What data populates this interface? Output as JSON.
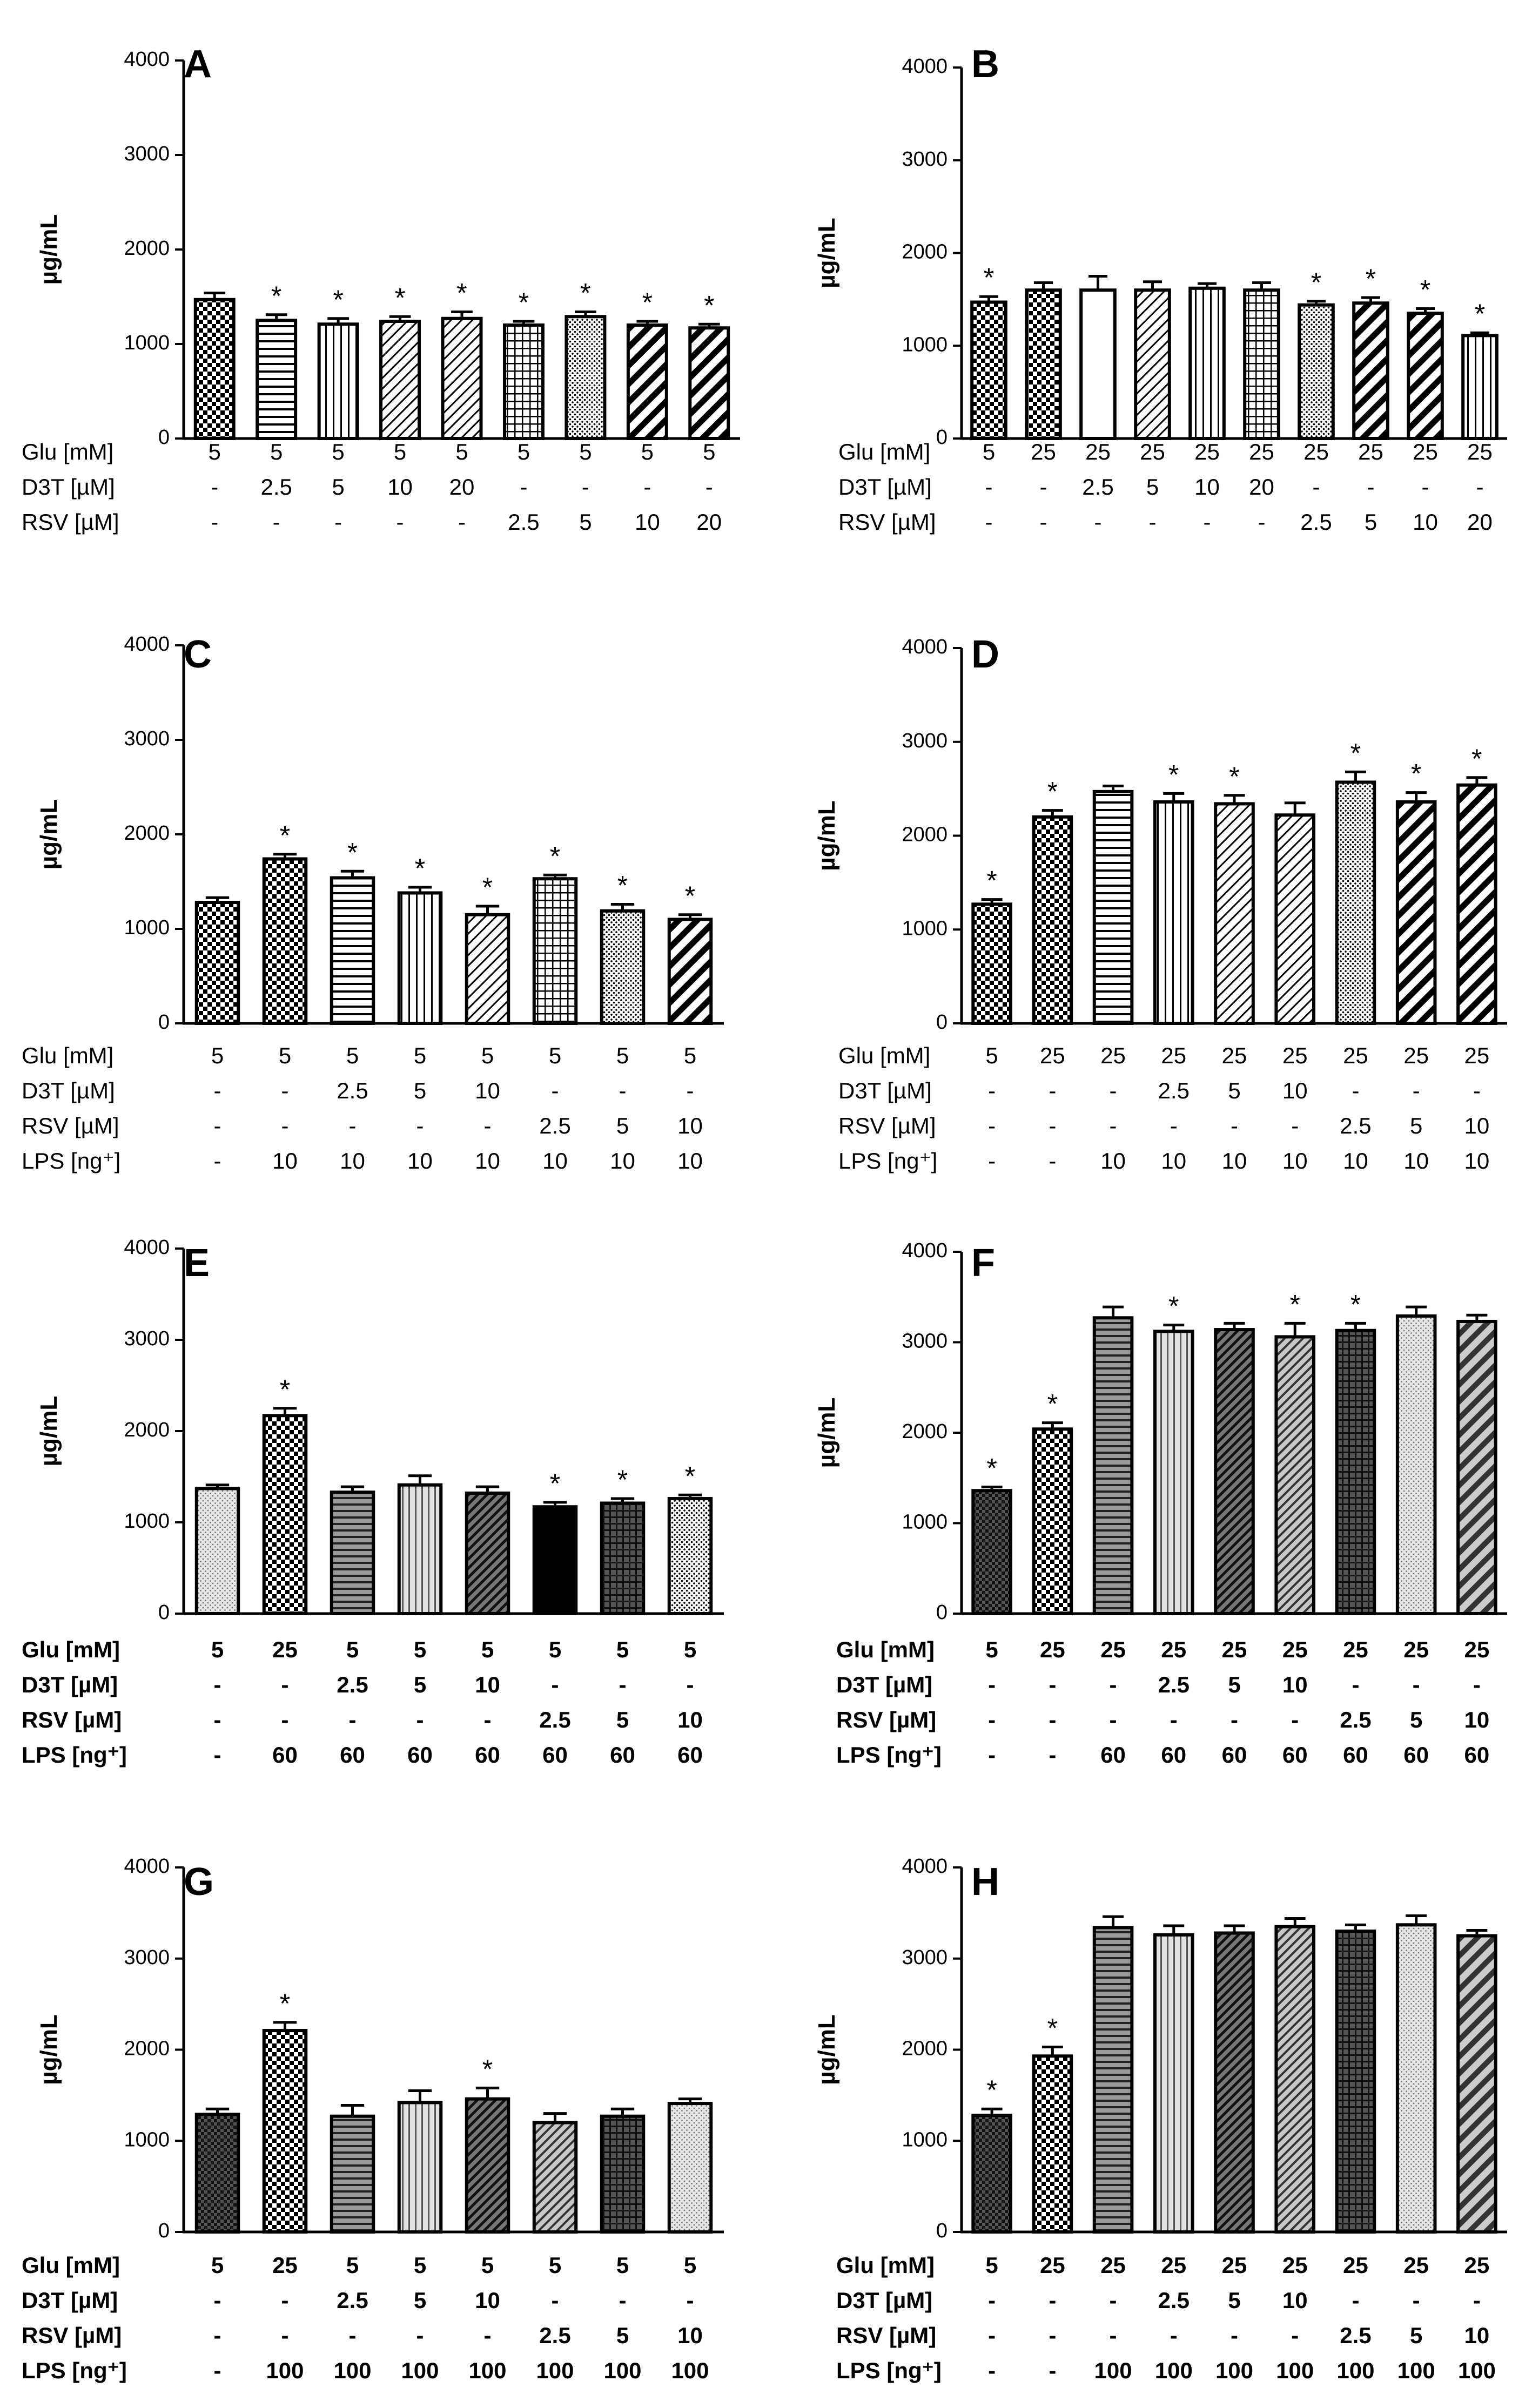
{
  "chart_data": [
    {
      "panel": "A",
      "type": "bar",
      "ylabel": "µg/mL",
      "ylim": [
        0,
        4000
      ],
      "yticks": [
        "0",
        "1000",
        "2000",
        "3000",
        "4000"
      ],
      "values": [
        1470,
        1250,
        1210,
        1240,
        1270,
        1200,
        1290,
        1200,
        1170
      ],
      "errors": [
        70,
        60,
        60,
        50,
        70,
        40,
        50,
        40,
        40
      ],
      "significance": [
        "",
        "*",
        "*",
        "*",
        "*",
        "*",
        "*",
        "*",
        "*"
      ],
      "patterns": [
        "check",
        "hlines",
        "vlines",
        "diag",
        "diag",
        "grid",
        "dots",
        "thickdiag",
        "thickdiag"
      ],
      "table": [
        {
          "label": "Glu [mM]",
          "cells": [
            "5",
            "5",
            "5",
            "5",
            "5",
            "5",
            "5",
            "5",
            "5"
          ]
        },
        {
          "label": "D3T [µM]",
          "cells": [
            "-",
            "2.5",
            "5",
            "10",
            "20",
            "-",
            "-",
            "-",
            "-"
          ]
        },
        {
          "label": "RSV [µM]",
          "cells": [
            "-",
            "-",
            "-",
            "-",
            "-",
            "2.5",
            "5",
            "10",
            "20"
          ]
        }
      ]
    },
    {
      "panel": "B",
      "type": "bar",
      "ylabel": "µg/mL",
      "ylim": [
        0,
        4000
      ],
      "yticks": [
        "0",
        "1000",
        "2000",
        "3000",
        "4000"
      ],
      "values": [
        1470,
        1600,
        1600,
        1600,
        1620,
        1600,
        1440,
        1460,
        1350,
        1110
      ],
      "errors": [
        60,
        80,
        150,
        90,
        50,
        80,
        40,
        60,
        50,
        30
      ],
      "significance": [
        "*",
        "",
        "",
        "",
        "",
        "",
        "*",
        "*",
        "*",
        "*"
      ],
      "patterns": [
        "check",
        "check",
        "white",
        "diag",
        "vlines",
        "grid",
        "dots",
        "thickdiag",
        "thickdiag",
        "vlines"
      ],
      "table": [
        {
          "label": "Glu [mM]",
          "cells": [
            "5",
            "25",
            "25",
            "25",
            "25",
            "25",
            "25",
            "25",
            "25",
            "25"
          ]
        },
        {
          "label": "D3T [µM]",
          "cells": [
            "-",
            "-",
            "2.5",
            "5",
            "10",
            "20",
            "-",
            "-",
            "-",
            "-"
          ]
        },
        {
          "label": "RSV [µM]",
          "cells": [
            "-",
            "-",
            "-",
            "-",
            "-",
            "-",
            "2.5",
            "5",
            "10",
            "20"
          ]
        }
      ]
    },
    {
      "panel": "C",
      "type": "bar",
      "ylabel": "µg/mL",
      "ylim": [
        0,
        4000
      ],
      "yticks": [
        "0",
        "1000",
        "2000",
        "3000",
        "4000"
      ],
      "values": [
        1280,
        1740,
        1540,
        1380,
        1150,
        1530,
        1190,
        1100
      ],
      "errors": [
        50,
        50,
        70,
        60,
        90,
        40,
        70,
        50
      ],
      "significance": [
        "",
        "*",
        "*",
        "*",
        "*",
        "*",
        "*",
        "*"
      ],
      "patterns": [
        "check",
        "check",
        "hlines",
        "vlines",
        "diag",
        "grid",
        "dots",
        "thickdiag"
      ],
      "table": [
        {
          "label": "Glu [mM]",
          "cells": [
            "5",
            "5",
            "5",
            "5",
            "5",
            "5",
            "5",
            "5"
          ]
        },
        {
          "label": "D3T [µM]",
          "cells": [
            "-",
            "-",
            "2.5",
            "5",
            "10",
            "-",
            "-",
            "-"
          ]
        },
        {
          "label": "RSV [µM]",
          "cells": [
            "-",
            "-",
            "-",
            "-",
            "-",
            "2.5",
            "5",
            "10"
          ]
        },
        {
          "label": "LPS [ng⁺]",
          "cells": [
            "-",
            "10",
            "10",
            "10",
            "10",
            "10",
            "10",
            "10"
          ]
        }
      ]
    },
    {
      "panel": "D",
      "type": "bar",
      "ylabel": "µg/mL",
      "ylim": [
        0,
        4000
      ],
      "yticks": [
        "0",
        "1000",
        "2000",
        "3000",
        "4000"
      ],
      "values": [
        1270,
        2200,
        2470,
        2360,
        2340,
        2220,
        2570,
        2360,
        2540
      ],
      "errors": [
        50,
        70,
        60,
        90,
        90,
        130,
        110,
        100,
        80
      ],
      "significance": [
        "*",
        "*",
        "",
        "*",
        "*",
        "",
        "*",
        "*",
        "*"
      ],
      "patterns": [
        "check",
        "check",
        "hlines",
        "vlines",
        "diag",
        "diag",
        "dots",
        "thickdiag",
        "thickdiag"
      ],
      "table": [
        {
          "label": "Glu [mM]",
          "cells": [
            "5",
            "25",
            "25",
            "25",
            "25",
            "25",
            "25",
            "25",
            "25"
          ]
        },
        {
          "label": "D3T [µM]",
          "cells": [
            "-",
            "-",
            "-",
            "2.5",
            "5",
            "10",
            "-",
            "-",
            "-"
          ]
        },
        {
          "label": "RSV [µM]",
          "cells": [
            "-",
            "-",
            "-",
            "-",
            "-",
            "-",
            "2.5",
            "5",
            "10"
          ]
        },
        {
          "label": "LPS [ng⁺]",
          "cells": [
            "-",
            "-",
            "10",
            "10",
            "10",
            "10",
            "10",
            "10",
            "10"
          ]
        }
      ]
    },
    {
      "panel": "E",
      "type": "bar",
      "ylabel": "µg/mL",
      "ylim": [
        0,
        4000
      ],
      "yticks": [
        "0",
        "1000",
        "2000",
        "3000",
        "4000"
      ],
      "values": [
        1370,
        2170,
        1330,
        1410,
        1320,
        1170,
        1210,
        1260
      ],
      "errors": [
        40,
        80,
        60,
        100,
        70,
        50,
        50,
        40
      ],
      "significance": [
        "",
        "*",
        "",
        "",
        "",
        "*",
        "*",
        "*"
      ],
      "patterns": [
        "lightdots",
        "check",
        "grayhlines",
        "lightvlines",
        "darkdiag",
        "black",
        "darkgrid",
        "dots"
      ],
      "table": [
        {
          "label": "Glu [mM]",
          "cells": [
            "5",
            "25",
            "5",
            "5",
            "5",
            "5",
            "5",
            "5"
          ]
        },
        {
          "label": "D3T [µM]",
          "cells": [
            "-",
            "-",
            "2.5",
            "5",
            "10",
            "-",
            "-",
            "-"
          ]
        },
        {
          "label": "RSV [µM]",
          "cells": [
            "-",
            "-",
            "-",
            "-",
            "-",
            "2.5",
            "5",
            "10"
          ]
        },
        {
          "label": "LPS [ng⁺]",
          "cells": [
            "-",
            "60",
            "60",
            "60",
            "60",
            "60",
            "60",
            "60"
          ]
        }
      ]
    },
    {
      "panel": "F",
      "type": "bar",
      "ylabel": "µg/mL",
      "ylim": [
        0,
        4000
      ],
      "yticks": [
        "0",
        "1000",
        "2000",
        "3000",
        "4000"
      ],
      "values": [
        1360,
        2040,
        3270,
        3120,
        3140,
        3060,
        3130,
        3290,
        3230
      ],
      "errors": [
        40,
        70,
        120,
        70,
        70,
        150,
        80,
        100,
        70
      ],
      "significance": [
        "*",
        "*",
        "",
        "*",
        "",
        "*",
        "*",
        "",
        ""
      ],
      "patterns": [
        "darkcheck",
        "check",
        "grayhlines",
        "lightvlines",
        "darkdiag",
        "graydiag",
        "darkgrid",
        "lightdots",
        "graythick"
      ],
      "table": [
        {
          "label": "Glu [mM]",
          "cells": [
            "5",
            "25",
            "25",
            "25",
            "25",
            "25",
            "25",
            "25",
            "25"
          ]
        },
        {
          "label": "D3T [µM]",
          "cells": [
            "-",
            "-",
            "-",
            "2.5",
            "5",
            "10",
            "-",
            "-",
            "-"
          ]
        },
        {
          "label": "RSV [µM]",
          "cells": [
            "-",
            "-",
            "-",
            "-",
            "-",
            "-",
            "2.5",
            "5",
            "10"
          ]
        },
        {
          "label": "LPS [ng⁺]",
          "cells": [
            "-",
            "-",
            "60",
            "60",
            "60",
            "60",
            "60",
            "60",
            "60"
          ]
        }
      ]
    },
    {
      "panel": "G",
      "type": "bar",
      "ylabel": "µg/mL",
      "ylim": [
        0,
        4000
      ],
      "yticks": [
        "0",
        "1000",
        "2000",
        "3000",
        "4000"
      ],
      "values": [
        1290,
        2210,
        1270,
        1420,
        1460,
        1200,
        1270,
        1410
      ],
      "errors": [
        60,
        90,
        120,
        130,
        120,
        100,
        80,
        50
      ],
      "significance": [
        "",
        "*",
        "",
        "",
        "*",
        "",
        "",
        ""
      ],
      "patterns": [
        "darkcheck",
        "check",
        "grayhlines",
        "lightvlines",
        "darkdiag",
        "graydiag",
        "darkgrid",
        "lightdots"
      ],
      "table": [
        {
          "label": "Glu [mM]",
          "cells": [
            "5",
            "25",
            "5",
            "5",
            "5",
            "5",
            "5",
            "5"
          ]
        },
        {
          "label": "D3T [µM]",
          "cells": [
            "-",
            "-",
            "2.5",
            "5",
            "10",
            "-",
            "-",
            "-"
          ]
        },
        {
          "label": "RSV [µM]",
          "cells": [
            "-",
            "-",
            "-",
            "-",
            "-",
            "2.5",
            "5",
            "10"
          ]
        },
        {
          "label": "LPS [ng⁺]",
          "cells": [
            "-",
            "100",
            "100",
            "100",
            "100",
            "100",
            "100",
            "100"
          ]
        }
      ]
    },
    {
      "panel": "H",
      "type": "bar",
      "ylabel": "µg/mL",
      "ylim": [
        0,
        4000
      ],
      "yticks": [
        "0",
        "1000",
        "2000",
        "3000",
        "4000"
      ],
      "values": [
        1280,
        1930,
        3340,
        3260,
        3280,
        3350,
        3300,
        3370,
        3250
      ],
      "errors": [
        70,
        100,
        120,
        100,
        80,
        90,
        70,
        100,
        60
      ],
      "significance": [
        "*",
        "*",
        "",
        "",
        "",
        "",
        "",
        "",
        ""
      ],
      "patterns": [
        "darkcheck",
        "check",
        "grayhlines",
        "lightvlines",
        "darkdiag",
        "graydiag",
        "darkgrid",
        "lightdots",
        "graythick"
      ],
      "table": [
        {
          "label": "Glu [mM]",
          "cells": [
            "5",
            "25",
            "25",
            "25",
            "25",
            "25",
            "25",
            "25",
            "25"
          ]
        },
        {
          "label": "D3T [µM]",
          "cells": [
            "-",
            "-",
            "-",
            "2.5",
            "5",
            "10",
            "-",
            "-",
            "-"
          ]
        },
        {
          "label": "RSV [µM]",
          "cells": [
            "-",
            "-",
            "-",
            "-",
            "-",
            "-",
            "2.5",
            "5",
            "10"
          ]
        },
        {
          "label": "LPS [ng⁺]",
          "cells": [
            "-",
            "-",
            "100",
            "100",
            "100",
            "100",
            "100",
            "100",
            "100"
          ]
        }
      ]
    }
  ]
}
